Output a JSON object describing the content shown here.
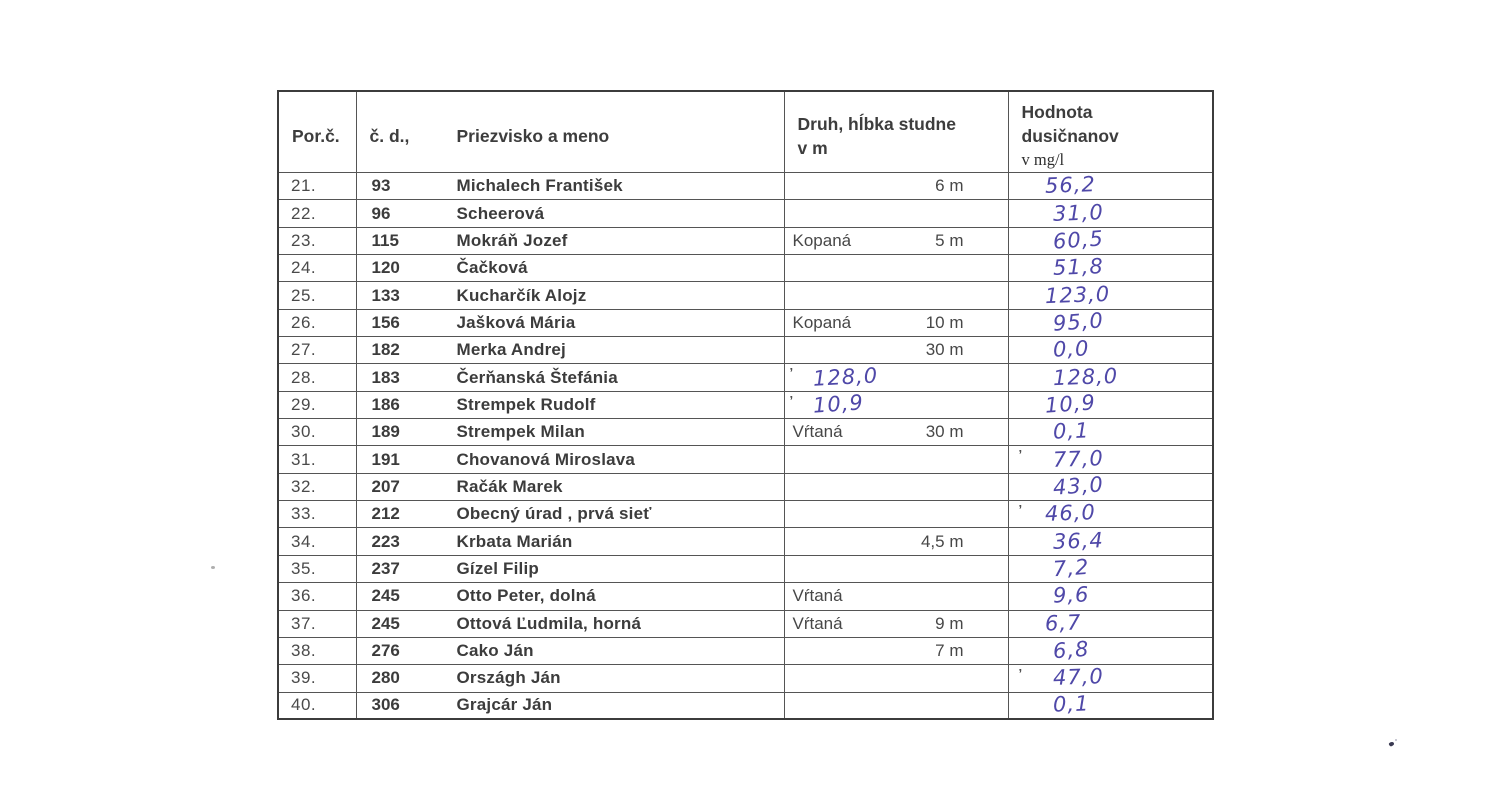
{
  "document": {
    "type": "scanned-table-page",
    "ink_color": "#4f48a8",
    "print_color": "#3c3c3c"
  },
  "table": {
    "header": {
      "col_porc": "Por.č.",
      "col_cd": "č. d.,",
      "col_name": "Priezvisko a meno",
      "col_druh_line1": "Druh, hĺbka studne",
      "col_druh_line2": "v m",
      "col_value_line1": "Hodnota",
      "col_value_line2": "dusičnanov",
      "col_value_line3": "v mg/l"
    },
    "rows": [
      {
        "num": "21.",
        "cd": "93",
        "name": "Michalech František",
        "druh": "",
        "depth": "6 m",
        "druh_mark": "",
        "druh_hand": "",
        "value_mark": "",
        "value": "56,2"
      },
      {
        "num": "22.",
        "cd": "96",
        "name": "Scheerová",
        "druh": "",
        "depth": "",
        "druh_mark": "",
        "druh_hand": "",
        "value_mark": "",
        "value": "31,0"
      },
      {
        "num": "23.",
        "cd": "115",
        "name": "Mokráň Jozef",
        "druh": "Kopaná",
        "depth": "5 m",
        "druh_mark": "",
        "druh_hand": "",
        "value_mark": "",
        "value": "60,5"
      },
      {
        "num": "24.",
        "cd": "120",
        "name": "Čačková",
        "druh": "",
        "depth": "",
        "druh_mark": "",
        "druh_hand": "",
        "value_mark": "",
        "value": "51,8"
      },
      {
        "num": "25.",
        "cd": "133",
        "name": "Kucharčík Alojz",
        "druh": "",
        "depth": "",
        "druh_mark": "",
        "druh_hand": "",
        "value_mark": "",
        "value": "123,0"
      },
      {
        "num": "26.",
        "cd": "156",
        "name": "Jašková Mária",
        "druh": "Kopaná",
        "depth": "10 m",
        "druh_mark": "",
        "druh_hand": "",
        "value_mark": "",
        "value": "95,0"
      },
      {
        "num": "27.",
        "cd": "182",
        "name": "Merka Andrej",
        "druh": "",
        "depth": "30 m",
        "druh_mark": "",
        "druh_hand": "",
        "value_mark": "",
        "value": "0,0"
      },
      {
        "num": "28.",
        "cd": "183",
        "name": "Čerňanská Štefánia",
        "druh": "",
        "depth": "",
        "druh_mark": "’",
        "druh_hand": "128,0",
        "value_mark": "",
        "value": "128,0"
      },
      {
        "num": "29.",
        "cd": "186",
        "name": "Strempek Rudolf",
        "druh": "",
        "depth": "",
        "druh_mark": "’",
        "druh_hand": "10,9",
        "value_mark": "",
        "value": "10,9"
      },
      {
        "num": "30.",
        "cd": "189",
        "name": "Strempek Milan",
        "druh": "Vŕtaná",
        "depth": "30 m",
        "druh_mark": "",
        "druh_hand": "",
        "value_mark": "",
        "value": "0,1"
      },
      {
        "num": "31.",
        "cd": "191",
        "name": "Chovanová Miroslava",
        "druh": "",
        "depth": "",
        "druh_mark": "",
        "druh_hand": "",
        "value_mark": "’",
        "value": "77,0"
      },
      {
        "num": "32.",
        "cd": "207",
        "name": "Račák Marek",
        "druh": "",
        "depth": "",
        "druh_mark": "",
        "druh_hand": "",
        "value_mark": "",
        "value": "43,0"
      },
      {
        "num": "33.",
        "cd": "212",
        "name": "Obecný úrad , prvá sieť",
        "druh": "",
        "depth": "",
        "druh_mark": "",
        "druh_hand": "",
        "value_mark": "’",
        "value": "46,0"
      },
      {
        "num": "34.",
        "cd": "223",
        "name": "Krbata Marián",
        "druh": "",
        "depth": "4,5 m",
        "druh_mark": "",
        "druh_hand": "",
        "value_mark": "",
        "value": "36,4"
      },
      {
        "num": "35.",
        "cd": "237",
        "name": "Gízel Filip",
        "druh": "",
        "depth": "",
        "druh_mark": "",
        "druh_hand": "",
        "value_mark": "",
        "value": "7,2"
      },
      {
        "num": "36.",
        "cd": "245",
        "name": "Otto Peter, dolná",
        "druh": "Vŕtaná",
        "depth": "",
        "druh_mark": "",
        "druh_hand": "",
        "value_mark": "",
        "value": "9,6"
      },
      {
        "num": "37.",
        "cd": "245",
        "name": "Ottová Ľudmila, horná",
        "druh": "Vŕtaná",
        "depth": "9 m",
        "druh_mark": "",
        "druh_hand": "",
        "value_mark": "",
        "value": "6,7"
      },
      {
        "num": "38.",
        "cd": "276",
        "name": "Cako Ján",
        "druh": "",
        "depth": "7 m",
        "druh_mark": "",
        "druh_hand": "",
        "value_mark": "",
        "value": "6,8"
      },
      {
        "num": "39.",
        "cd": "280",
        "name": "Országh Ján",
        "druh": "",
        "depth": "",
        "druh_mark": "",
        "druh_hand": "",
        "value_mark": "’",
        "value": "47,0"
      },
      {
        "num": "40.",
        "cd": "306",
        "name": "Grajcár Ján",
        "druh": "",
        "depth": "",
        "druh_mark": "",
        "druh_hand": "",
        "value_mark": "",
        "value": "0,1"
      }
    ]
  },
  "artifacts": {
    "left_margin_dot": "faint gray speck",
    "bottom_right_mark": "small ink speck"
  }
}
